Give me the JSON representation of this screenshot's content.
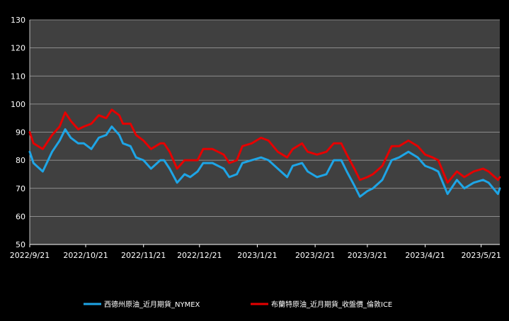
{
  "chart_data": {
    "type": "line",
    "title": "",
    "xlabel": "",
    "ylabel": "",
    "ylim": [
      50,
      130
    ],
    "y_ticks": [
      50,
      60,
      70,
      80,
      90,
      100,
      110,
      120,
      130
    ],
    "x_ticks": [
      "2022/9/21",
      "2022/10/21",
      "2022/11/21",
      "2022/12/21",
      "2023/1/21",
      "2023/2/21",
      "2023/3/21",
      "2023/4/21",
      "2023/5/21"
    ],
    "x_range": [
      "2022-09-21",
      "2023-05-31"
    ],
    "grid": "horizontal",
    "legend_position": "bottom",
    "series": [
      {
        "name": "西德州原油_近月期貨_NYMEX",
        "color": "#1ea5e6",
        "points": [
          [
            "2022-09-21",
            83
          ],
          [
            "2022-09-23",
            79
          ],
          [
            "2022-09-28",
            76
          ],
          [
            "2022-10-03",
            83
          ],
          [
            "2022-10-07",
            87
          ],
          [
            "2022-10-10",
            91
          ],
          [
            "2022-10-13",
            88
          ],
          [
            "2022-10-17",
            86
          ],
          [
            "2022-10-20",
            86
          ],
          [
            "2022-10-24",
            84
          ],
          [
            "2022-10-28",
            88
          ],
          [
            "2022-11-01",
            89
          ],
          [
            "2022-11-04",
            92
          ],
          [
            "2022-11-08",
            89
          ],
          [
            "2022-11-10",
            86
          ],
          [
            "2022-11-14",
            85
          ],
          [
            "2022-11-17",
            81
          ],
          [
            "2022-11-21",
            80
          ],
          [
            "2022-11-25",
            77
          ],
          [
            "2022-11-30",
            80
          ],
          [
            "2022-12-02",
            80
          ],
          [
            "2022-12-05",
            77
          ],
          [
            "2022-12-09",
            72
          ],
          [
            "2022-12-13",
            75
          ],
          [
            "2022-12-16",
            74
          ],
          [
            "2022-12-20",
            76
          ],
          [
            "2022-12-23",
            79
          ],
          [
            "2022-12-28",
            79
          ],
          [
            "2023-01-03",
            77
          ],
          [
            "2023-01-06",
            74
          ],
          [
            "2023-01-10",
            75
          ],
          [
            "2023-01-13",
            79
          ],
          [
            "2023-01-18",
            80
          ],
          [
            "2023-01-23",
            81
          ],
          [
            "2023-01-27",
            80
          ],
          [
            "2023-02-01",
            77
          ],
          [
            "2023-02-06",
            74
          ],
          [
            "2023-02-09",
            78
          ],
          [
            "2023-02-14",
            79
          ],
          [
            "2023-02-17",
            76
          ],
          [
            "2023-02-22",
            74
          ],
          [
            "2023-02-27",
            75
          ],
          [
            "2023-03-03",
            80
          ],
          [
            "2023-03-07",
            80
          ],
          [
            "2023-03-10",
            76
          ],
          [
            "2023-03-14",
            71
          ],
          [
            "2023-03-17",
            67
          ],
          [
            "2023-03-21",
            69
          ],
          [
            "2023-03-24",
            70
          ],
          [
            "2023-03-29",
            73
          ],
          [
            "2023-04-03",
            80
          ],
          [
            "2023-04-07",
            81
          ],
          [
            "2023-04-12",
            83
          ],
          [
            "2023-04-17",
            81
          ],
          [
            "2023-04-21",
            78
          ],
          [
            "2023-04-25",
            77
          ],
          [
            "2023-04-28",
            76
          ],
          [
            "2023-05-03",
            68
          ],
          [
            "2023-05-08",
            73
          ],
          [
            "2023-05-12",
            70
          ],
          [
            "2023-05-17",
            72
          ],
          [
            "2023-05-22",
            73
          ],
          [
            "2023-05-25",
            72
          ],
          [
            "2023-05-30",
            68
          ],
          [
            "2023-05-31",
            70
          ]
        ]
      },
      {
        "name": "布蘭特原油_近月期貨_收盤價_倫敦ICE",
        "color": "#e60000",
        "points": [
          [
            "2022-09-21",
            90
          ],
          [
            "2022-09-23",
            86
          ],
          [
            "2022-09-28",
            84
          ],
          [
            "2022-10-03",
            89
          ],
          [
            "2022-10-07",
            92
          ],
          [
            "2022-10-10",
            97
          ],
          [
            "2022-10-13",
            94
          ],
          [
            "2022-10-17",
            91
          ],
          [
            "2022-10-20",
            92
          ],
          [
            "2022-10-24",
            93
          ],
          [
            "2022-10-28",
            96
          ],
          [
            "2022-11-01",
            95
          ],
          [
            "2022-11-04",
            98
          ],
          [
            "2022-11-08",
            96
          ],
          [
            "2022-11-10",
            93
          ],
          [
            "2022-11-14",
            93
          ],
          [
            "2022-11-17",
            89
          ],
          [
            "2022-11-21",
            87
          ],
          [
            "2022-11-25",
            84
          ],
          [
            "2022-11-30",
            86
          ],
          [
            "2022-12-02",
            86
          ],
          [
            "2022-12-05",
            83
          ],
          [
            "2022-12-09",
            77
          ],
          [
            "2022-12-13",
            80
          ],
          [
            "2022-12-16",
            80
          ],
          [
            "2022-12-20",
            80
          ],
          [
            "2022-12-23",
            84
          ],
          [
            "2022-12-28",
            84
          ],
          [
            "2023-01-03",
            82
          ],
          [
            "2023-01-06",
            79
          ],
          [
            "2023-01-10",
            80
          ],
          [
            "2023-01-13",
            85
          ],
          [
            "2023-01-18",
            86
          ],
          [
            "2023-01-23",
            88
          ],
          [
            "2023-01-27",
            87
          ],
          [
            "2023-02-01",
            83
          ],
          [
            "2023-02-06",
            81
          ],
          [
            "2023-02-09",
            84
          ],
          [
            "2023-02-14",
            86
          ],
          [
            "2023-02-17",
            83
          ],
          [
            "2023-02-22",
            82
          ],
          [
            "2023-02-27",
            83
          ],
          [
            "2023-03-03",
            86
          ],
          [
            "2023-03-07",
            86
          ],
          [
            "2023-03-10",
            82
          ],
          [
            "2023-03-14",
            77
          ],
          [
            "2023-03-17",
            73
          ],
          [
            "2023-03-21",
            74
          ],
          [
            "2023-03-24",
            75
          ],
          [
            "2023-03-29",
            78
          ],
          [
            "2023-04-03",
            85
          ],
          [
            "2023-04-07",
            85
          ],
          [
            "2023-04-12",
            87
          ],
          [
            "2023-04-17",
            85
          ],
          [
            "2023-04-21",
            82
          ],
          [
            "2023-04-25",
            81
          ],
          [
            "2023-04-28",
            80
          ],
          [
            "2023-05-03",
            72
          ],
          [
            "2023-05-08",
            76
          ],
          [
            "2023-05-12",
            74
          ],
          [
            "2023-05-17",
            76
          ],
          [
            "2023-05-22",
            77
          ],
          [
            "2023-05-25",
            76
          ],
          [
            "2023-05-30",
            73
          ],
          [
            "2023-05-31",
            74
          ]
        ]
      }
    ]
  }
}
